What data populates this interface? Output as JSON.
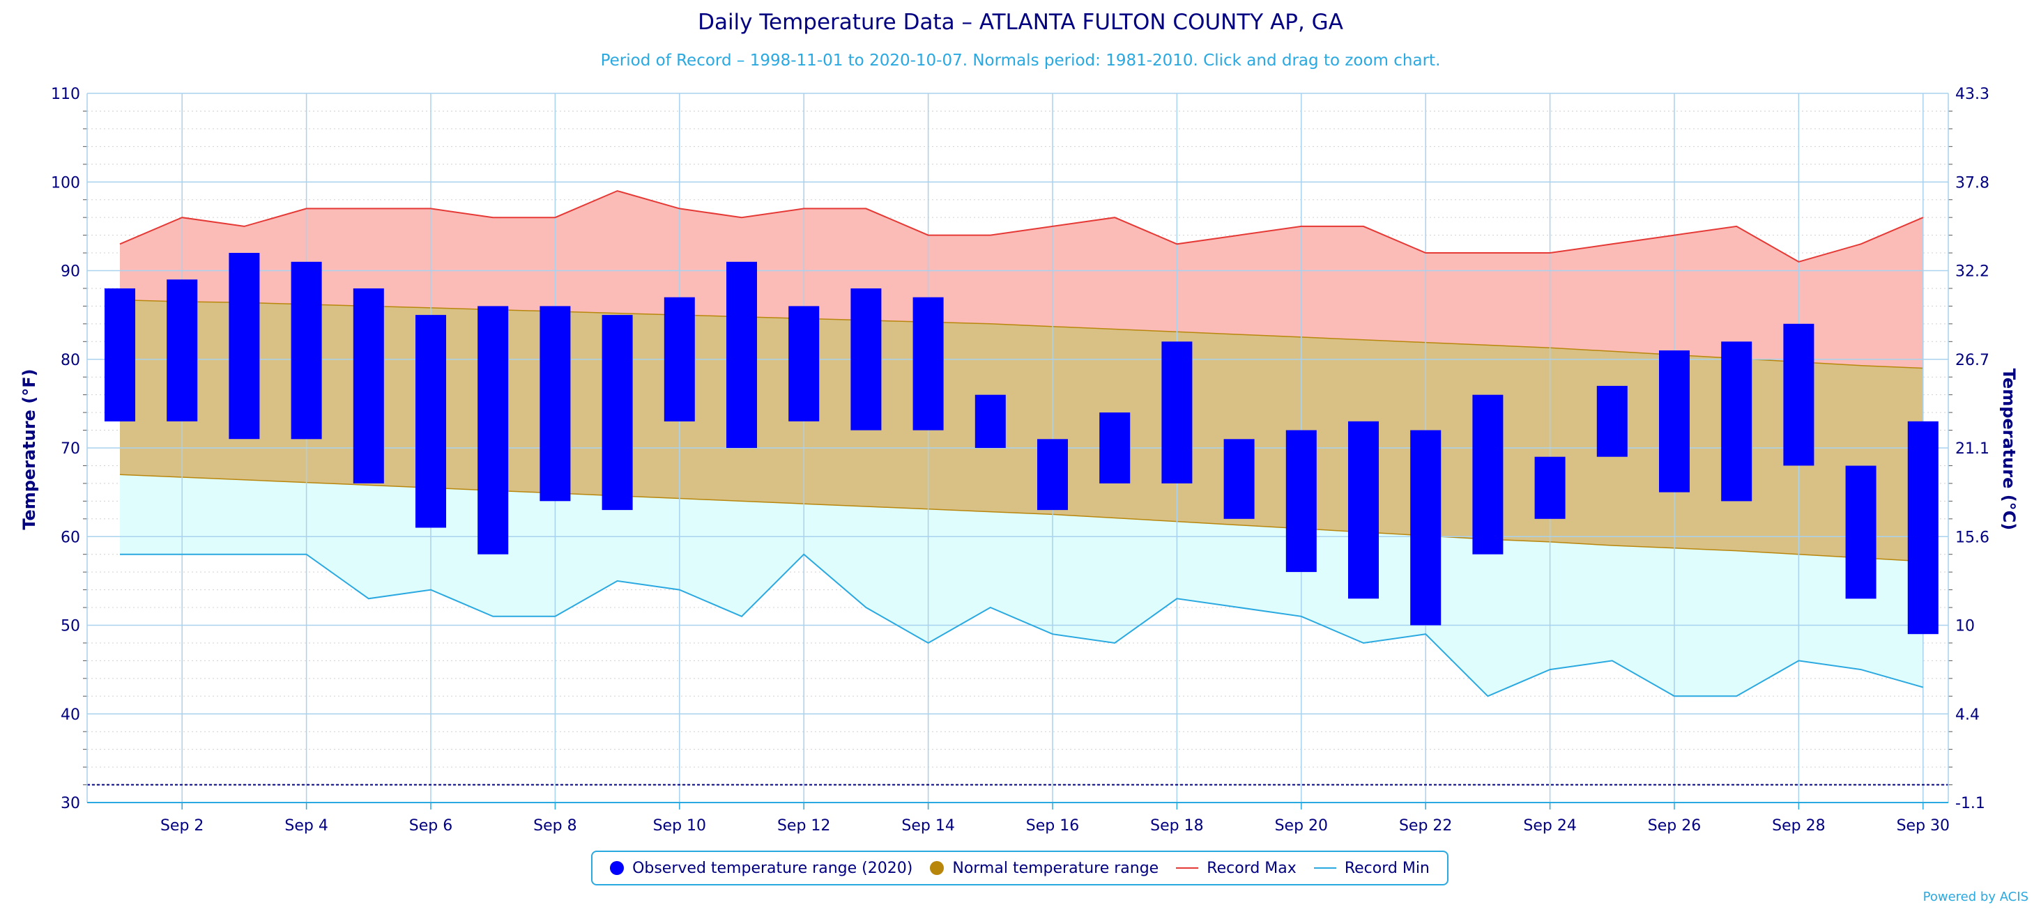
{
  "chart_data": {
    "type": "bar",
    "title": "Daily Temperature Data – ATLANTA FULTON COUNTY AP, GA",
    "subtitle": "Period of Record – 1998-11-01 to 2020-10-07. Normals period: 1981-2010. Click and drag to zoom chart.",
    "ylabel": "Temperature (°F)",
    "ylabel_right": "Temperature (°C)",
    "ylim": [
      30,
      110
    ],
    "yticks": [
      30,
      40,
      50,
      60,
      70,
      80,
      90,
      100,
      110
    ],
    "yticks_right": [
      "-1.1",
      "4.4",
      "10",
      "15.6",
      "21.1",
      "26.7",
      "32.2",
      "37.8",
      "43.3"
    ],
    "x": [
      1,
      2,
      3,
      4,
      5,
      6,
      7,
      8,
      9,
      10,
      11,
      12,
      13,
      14,
      15,
      16,
      17,
      18,
      19,
      20,
      21,
      22,
      23,
      24,
      25,
      26,
      27,
      28,
      29,
      30
    ],
    "xtick_labels": [
      "Sep 2",
      "Sep 4",
      "Sep 6",
      "Sep 8",
      "Sep 10",
      "Sep 12",
      "Sep 14",
      "Sep 16",
      "Sep 18",
      "Sep 20",
      "Sep 22",
      "Sep 24",
      "Sep 26",
      "Sep 28",
      "Sep 30"
    ],
    "xtick_days": [
      2,
      4,
      6,
      8,
      10,
      12,
      14,
      16,
      18,
      20,
      22,
      24,
      26,
      28,
      30
    ],
    "freezing_line": 32,
    "series": [
      {
        "name": "Observed temperature range (2020)",
        "color": "#0000ff",
        "high": [
          88,
          89,
          92,
          91,
          88,
          85,
          86,
          86,
          85,
          87,
          91,
          86,
          88,
          87,
          76,
          71,
          74,
          82,
          71,
          72,
          73,
          72,
          76,
          69,
          77,
          81,
          82,
          84,
          68,
          73
        ],
        "low": [
          73,
          73,
          71,
          71,
          66,
          61,
          58,
          64,
          63,
          73,
          70,
          73,
          72,
          72,
          70,
          63,
          66,
          66,
          62,
          56,
          53,
          50,
          58,
          62,
          69,
          65,
          64,
          68,
          53,
          49
        ]
      },
      {
        "name": "Normal temperature range",
        "color": "#b8860b",
        "high": [
          86.7,
          86.5,
          86.4,
          86.2,
          86.0,
          85.8,
          85.6,
          85.4,
          85.2,
          85.0,
          84.8,
          84.6,
          84.4,
          84.2,
          84.0,
          83.7,
          83.4,
          83.1,
          82.8,
          82.5,
          82.2,
          81.9,
          81.6,
          81.3,
          80.9,
          80.5,
          80.1,
          79.7,
          79.3,
          79.0
        ],
        "low": [
          67.0,
          66.7,
          66.4,
          66.1,
          65.8,
          65.5,
          65.2,
          64.9,
          64.6,
          64.3,
          64.0,
          63.7,
          63.4,
          63.1,
          62.8,
          62.5,
          62.1,
          61.7,
          61.3,
          60.9,
          60.5,
          60.1,
          59.7,
          59.4,
          59.0,
          58.7,
          58.4,
          58.0,
          57.6,
          57.2
        ]
      },
      {
        "name": "Record Max",
        "color": "#e53935",
        "values": [
          93,
          96,
          95,
          97,
          97,
          97,
          96,
          96,
          99,
          97,
          96,
          97,
          97,
          94,
          94,
          95,
          96,
          93,
          94,
          95,
          95,
          92,
          92,
          92,
          93,
          94,
          95,
          91,
          93,
          96
        ]
      },
      {
        "name": "Record Min",
        "color": "#2aa8e0",
        "values": [
          58,
          58,
          58,
          58,
          53,
          54,
          51,
          51,
          55,
          54,
          51,
          58,
          52,
          48,
          52,
          49,
          48,
          53,
          52,
          51,
          48,
          49,
          42,
          45,
          46,
          42,
          42,
          46,
          45,
          43
        ]
      }
    ],
    "legend": {
      "placement": "bottom-center"
    },
    "grid": true
  },
  "credit": "Powered by ACIS",
  "colors": {
    "axis_text": "#000080",
    "grid": "#a9d2ee",
    "record_band": "#fbbcb8",
    "normal_band": "#d9c185",
    "low_band": "#e0fdfd"
  }
}
